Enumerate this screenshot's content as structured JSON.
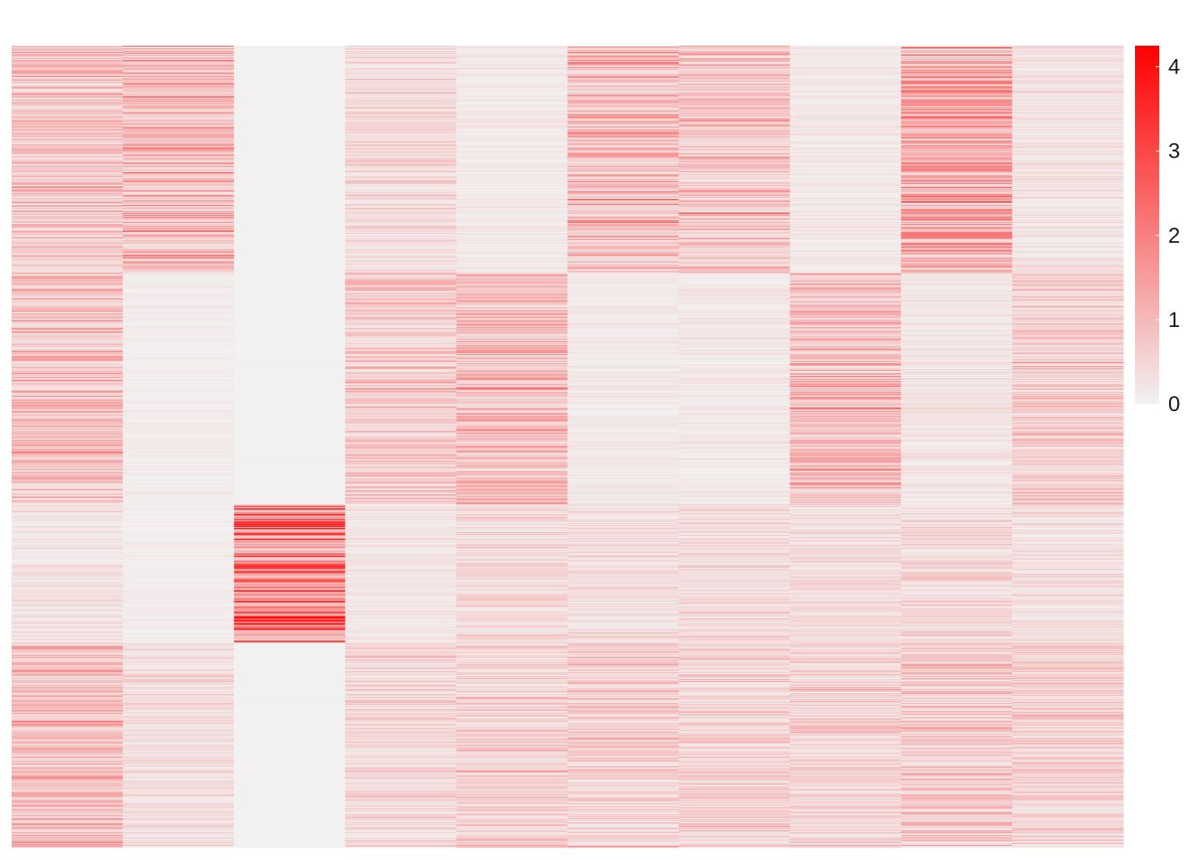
{
  "chart_data": {
    "type": "heatmap",
    "title": "",
    "xlabel": "",
    "ylabel": "",
    "num_columns": 10,
    "num_rows": 900,
    "colorscale": {
      "min": 0,
      "max": 4.25,
      "low_color": "#f2f2f2",
      "high_color": "#ff0000",
      "ticks": [
        0,
        1,
        2,
        3,
        4
      ],
      "tick_labels": [
        "0",
        "1",
        "2",
        "3",
        "4"
      ]
    },
    "row_blocks": [
      {
        "rows": 255,
        "column_means": [
          0.8,
          1.1,
          0.02,
          0.45,
          0.18,
          1.0,
          0.85,
          0.2,
          1.35,
          0.3
        ]
      },
      {
        "rows": 260,
        "column_means": [
          0.95,
          0.12,
          0.02,
          0.75,
          1.05,
          0.18,
          0.2,
          0.95,
          0.25,
          0.7
        ]
      },
      {
        "rows": 155,
        "column_means": [
          0.3,
          0.1,
          2.1,
          0.25,
          0.45,
          0.4,
          0.45,
          0.4,
          0.5,
          0.4
        ]
      },
      {
        "rows": 230,
        "column_means": [
          1.0,
          0.4,
          0.02,
          0.5,
          0.6,
          0.65,
          0.6,
          0.6,
          0.75,
          0.6
        ]
      }
    ]
  }
}
